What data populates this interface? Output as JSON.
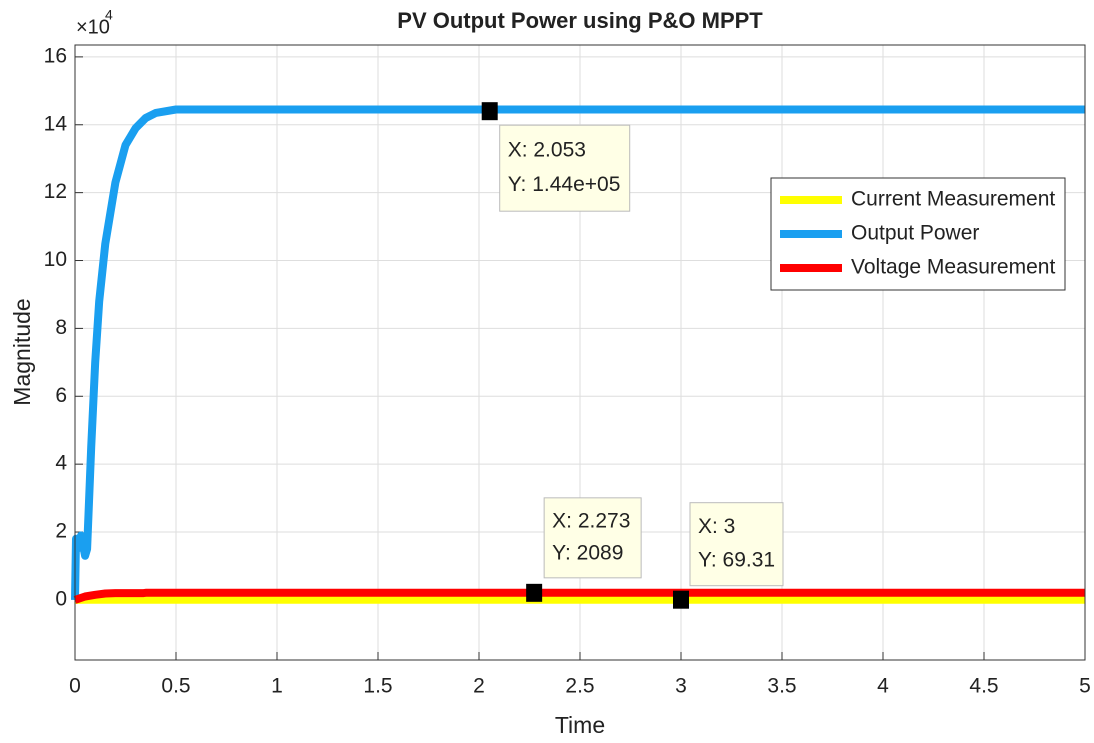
{
  "chart_data": {
    "type": "line",
    "title": "PV Output Power using P&O MPPT",
    "x_label": "Time",
    "y_label": "Magnitude",
    "y_multiplier": {
      "base": "×10",
      "exponent": "4"
    },
    "xlim": [
      0,
      5
    ],
    "xticks": [
      0,
      0.5,
      1,
      1.5,
      2,
      2.5,
      3,
      3.5,
      4,
      4.5,
      5
    ],
    "ylim": [
      -1.77,
      16.35
    ],
    "yticks": [
      0,
      2,
      4,
      6,
      8,
      10,
      12,
      14,
      16
    ],
    "grid": true,
    "legend": "northeast",
    "series": [
      {
        "name": "Current Measurement",
        "color": "#ffff00",
        "x": [
          0,
          0.05,
          0.1,
          0.2,
          0.35,
          1,
          2,
          3,
          4,
          5
        ],
        "values": [
          0,
          0.004,
          0.006,
          0.0069,
          0.006931,
          0.006931,
          0.006931,
          0.006931,
          0.006931,
          0.006931
        ]
      },
      {
        "name": "Output Power",
        "color": "#1a9ff0",
        "x": [
          0,
          0.005,
          0.01,
          0.03,
          0.05,
          0.06,
          0.08,
          0.1,
          0.12,
          0.15,
          0.2,
          0.25,
          0.3,
          0.35,
          0.4,
          0.5,
          0.6,
          1,
          2,
          3,
          4,
          5
        ],
        "values": [
          0,
          1.8,
          1.5,
          1.9,
          1.3,
          1.5,
          4.5,
          7.0,
          8.8,
          10.5,
          12.3,
          13.4,
          13.9,
          14.2,
          14.35,
          14.45,
          14.45,
          14.45,
          14.45,
          14.45,
          14.45,
          14.45
        ]
      },
      {
        "name": "Voltage Measurement",
        "color": "#ff0000",
        "x": [
          0,
          0.05,
          0.1,
          0.15,
          0.2,
          0.34,
          0.35,
          1,
          2,
          3,
          4,
          5
        ],
        "values": [
          0,
          0.1,
          0.15,
          0.19,
          0.2,
          0.2,
          0.2089,
          0.2089,
          0.2089,
          0.2089,
          0.2089,
          0.2089
        ]
      }
    ],
    "datatips": [
      {
        "x": 2.053,
        "y": 14.4,
        "x_label": "X: 2.053",
        "y_label": "Y: 1.44e+05"
      },
      {
        "x": 2.273,
        "y": 0.2089,
        "x_label": "X: 2.273",
        "y_label": "Y: 2089"
      },
      {
        "x": 3,
        "y": 0.006931,
        "x_label": "X: 3",
        "y_label": "Y: 69.31"
      }
    ]
  }
}
